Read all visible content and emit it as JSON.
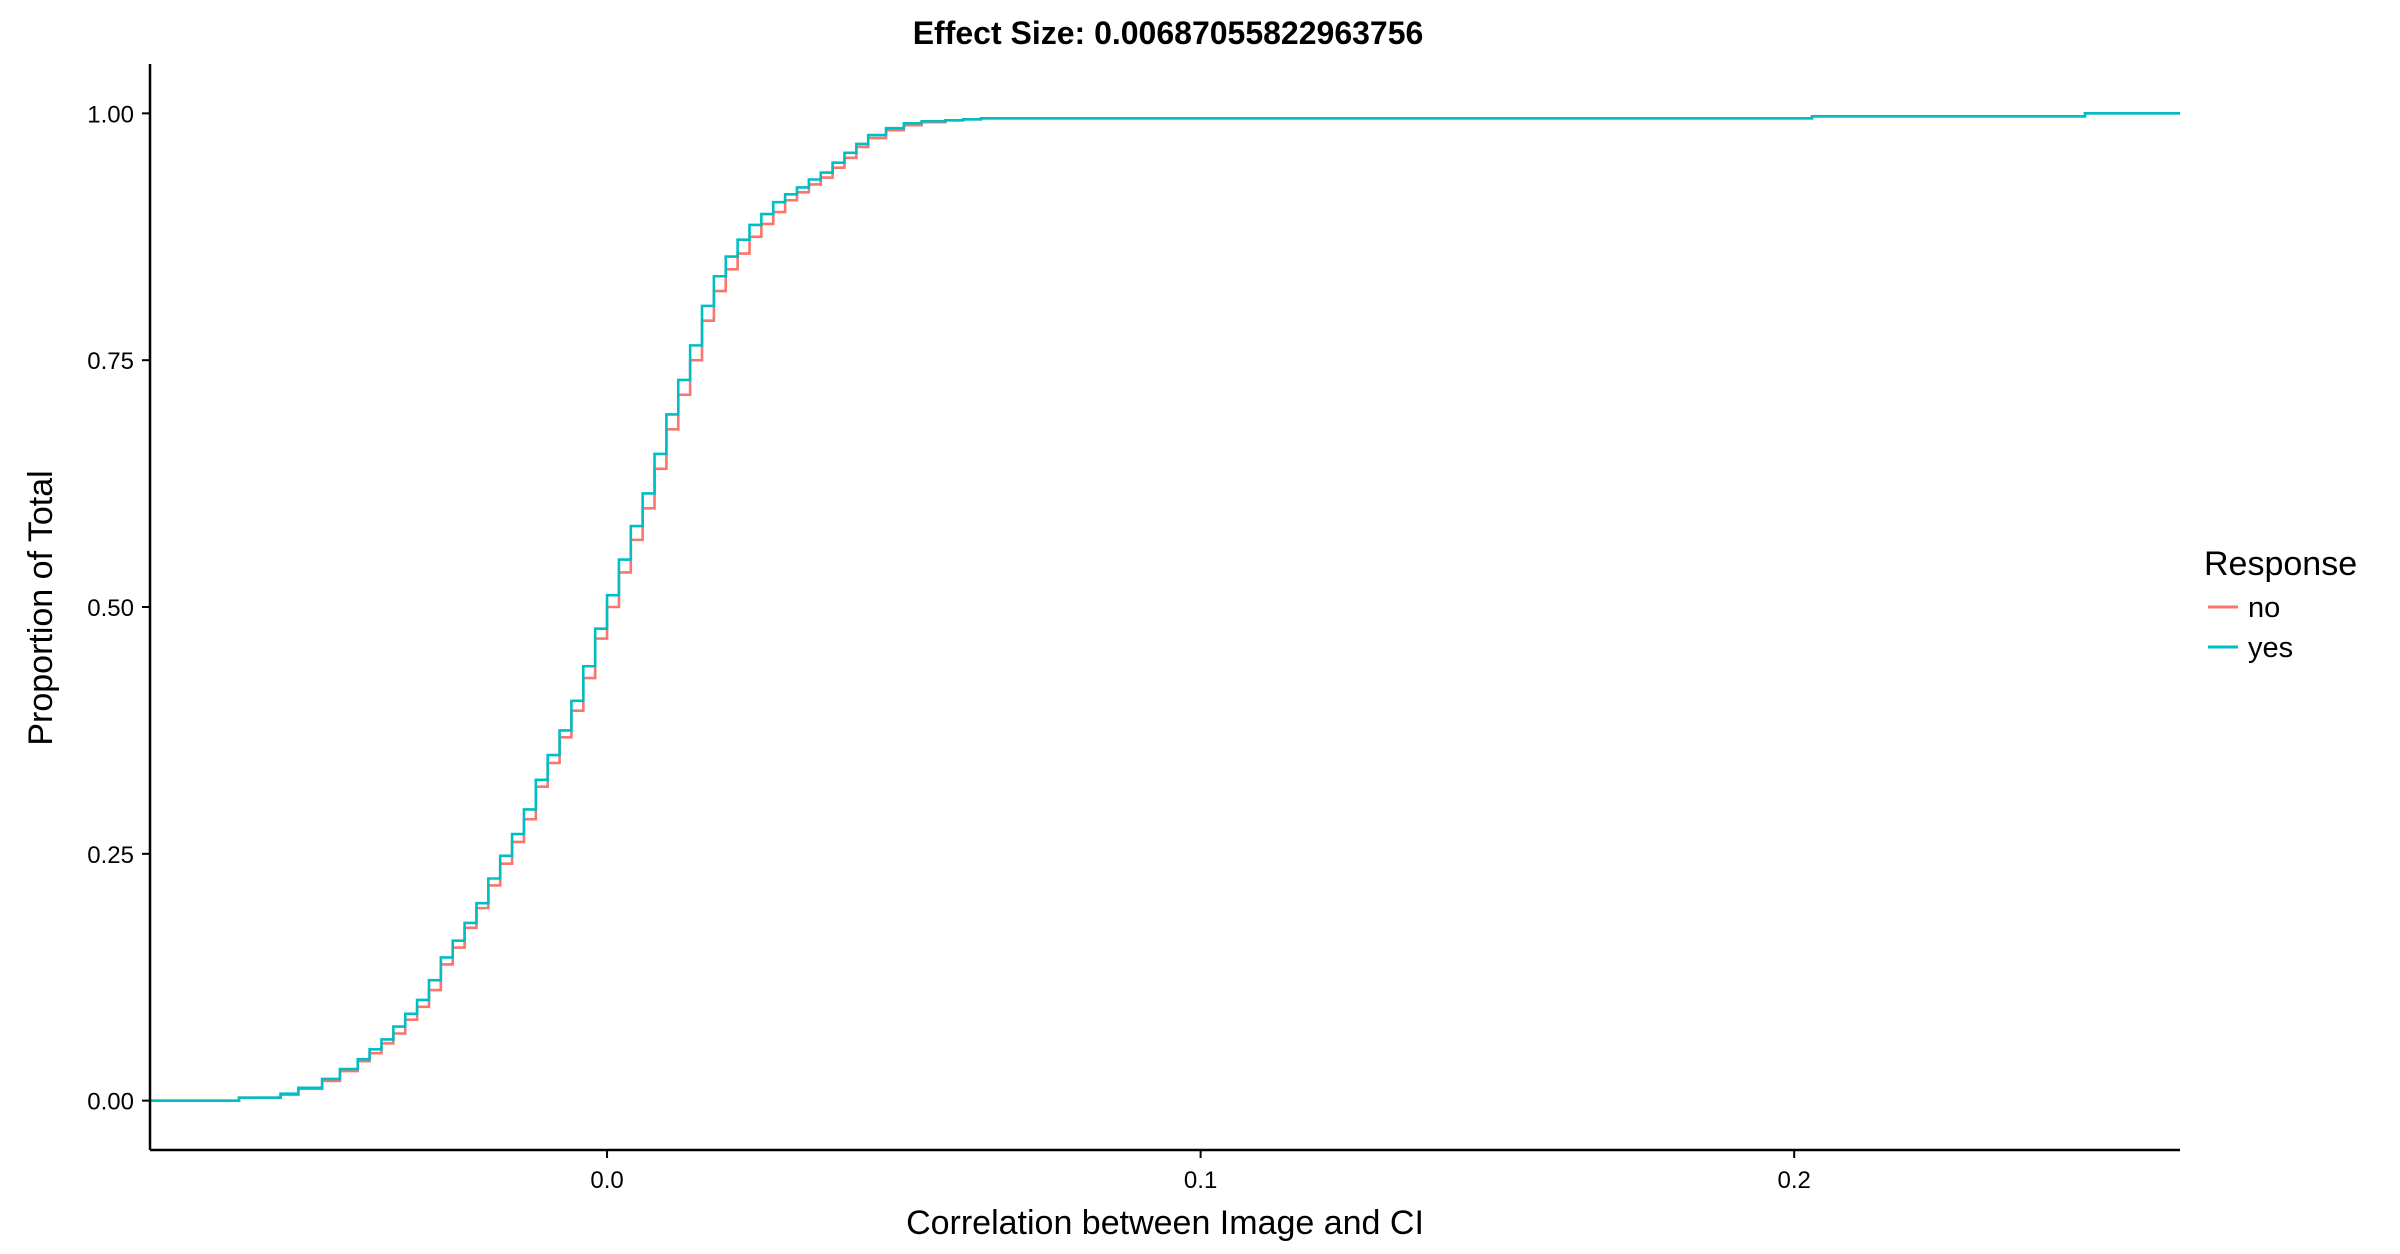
{
  "chart_data": {
    "type": "line",
    "step": true,
    "title": "Effect Size: 0.00687055822963756",
    "xlabel": "Correlation between Image and CI",
    "ylabel": "Proportion of Total",
    "xlim": [
      -0.077,
      0.265
    ],
    "ylim": [
      -0.05,
      1.05
    ],
    "x_ticks": [
      0.0,
      0.1,
      0.2
    ],
    "x_tick_labels": [
      "0.0",
      "0.1",
      "0.2"
    ],
    "y_ticks": [
      0.0,
      0.25,
      0.5,
      0.75,
      1.0
    ],
    "y_tick_labels": [
      "0.00",
      "0.25",
      "0.50",
      "0.75",
      "1.00"
    ],
    "grid": false,
    "legend": {
      "title": "Response",
      "position": "right"
    },
    "series": [
      {
        "name": "no",
        "color": "#F8766D",
        "x": [
          -0.077,
          -0.062,
          -0.055,
          -0.052,
          -0.048,
          -0.045,
          -0.042,
          -0.04,
          -0.038,
          -0.036,
          -0.034,
          -0.032,
          -0.03,
          -0.028,
          -0.026,
          -0.024,
          -0.022,
          -0.02,
          -0.018,
          -0.016,
          -0.014,
          -0.012,
          -0.01,
          -0.008,
          -0.006,
          -0.004,
          -0.002,
          0.0,
          0.002,
          0.004,
          0.006,
          0.008,
          0.01,
          0.012,
          0.014,
          0.016,
          0.018,
          0.02,
          0.022,
          0.024,
          0.026,
          0.028,
          0.03,
          0.032,
          0.034,
          0.036,
          0.038,
          0.04,
          0.042,
          0.044,
          0.047,
          0.05,
          0.053,
          0.057,
          0.06,
          0.063,
          0.203,
          0.249,
          0.265
        ],
        "y": [
          0.0,
          0.003,
          0.006,
          0.012,
          0.02,
          0.03,
          0.04,
          0.048,
          0.058,
          0.068,
          0.082,
          0.095,
          0.112,
          0.138,
          0.155,
          0.175,
          0.195,
          0.218,
          0.24,
          0.262,
          0.285,
          0.318,
          0.342,
          0.368,
          0.395,
          0.428,
          0.468,
          0.5,
          0.535,
          0.568,
          0.6,
          0.64,
          0.68,
          0.715,
          0.75,
          0.79,
          0.82,
          0.842,
          0.858,
          0.875,
          0.888,
          0.9,
          0.912,
          0.92,
          0.928,
          0.935,
          0.945,
          0.955,
          0.966,
          0.975,
          0.983,
          0.988,
          0.991,
          0.993,
          0.994,
          0.995,
          0.997,
          1.0,
          1.0
        ]
      },
      {
        "name": "yes",
        "color": "#00BFC4",
        "x": [
          -0.077,
          -0.062,
          -0.055,
          -0.052,
          -0.048,
          -0.045,
          -0.042,
          -0.04,
          -0.038,
          -0.036,
          -0.034,
          -0.032,
          -0.03,
          -0.028,
          -0.026,
          -0.024,
          -0.022,
          -0.02,
          -0.018,
          -0.016,
          -0.014,
          -0.012,
          -0.01,
          -0.008,
          -0.006,
          -0.004,
          -0.002,
          0.0,
          0.002,
          0.004,
          0.006,
          0.008,
          0.01,
          0.012,
          0.014,
          0.016,
          0.018,
          0.02,
          0.022,
          0.024,
          0.026,
          0.028,
          0.03,
          0.032,
          0.034,
          0.036,
          0.038,
          0.04,
          0.042,
          0.044,
          0.047,
          0.05,
          0.053,
          0.057,
          0.06,
          0.063,
          0.203,
          0.249,
          0.265
        ],
        "y": [
          0.0,
          0.003,
          0.007,
          0.013,
          0.022,
          0.032,
          0.042,
          0.052,
          0.062,
          0.075,
          0.088,
          0.102,
          0.122,
          0.145,
          0.162,
          0.18,
          0.2,
          0.225,
          0.248,
          0.27,
          0.295,
          0.325,
          0.35,
          0.375,
          0.405,
          0.44,
          0.478,
          0.512,
          0.548,
          0.582,
          0.615,
          0.655,
          0.695,
          0.73,
          0.765,
          0.805,
          0.835,
          0.855,
          0.872,
          0.887,
          0.898,
          0.91,
          0.918,
          0.925,
          0.933,
          0.94,
          0.95,
          0.96,
          0.969,
          0.978,
          0.985,
          0.99,
          0.992,
          0.993,
          0.994,
          0.995,
          0.997,
          1.0,
          1.0
        ]
      }
    ]
  }
}
